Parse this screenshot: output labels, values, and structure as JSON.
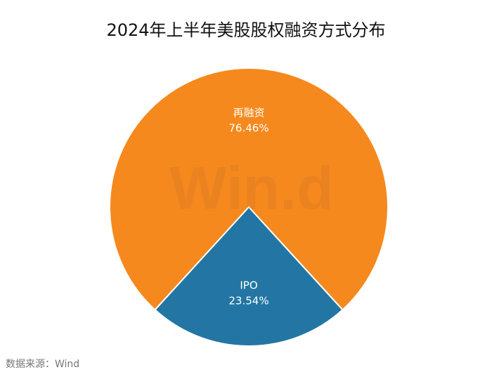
{
  "chart_data": {
    "type": "pie",
    "title": "2024年上半年美股股权融资方式分布",
    "categories": [
      "再融资",
      "IPO"
    ],
    "values": [
      76.46,
      23.54
    ],
    "value_labels": [
      "76.46%",
      "23.54%"
    ],
    "colors": [
      "#f5891d",
      "#2376a3"
    ],
    "watermark": "Win.d",
    "source": "数据来源：Wind"
  }
}
